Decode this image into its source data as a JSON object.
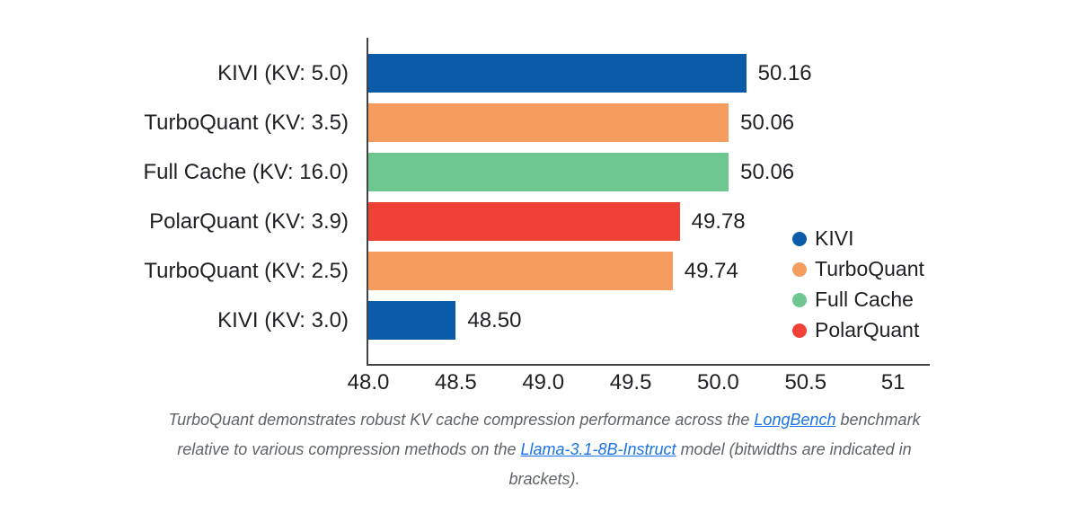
{
  "chart_data": {
    "type": "bar",
    "orientation": "horizontal",
    "title": "",
    "xlabel": "",
    "ylabel": "",
    "xlim": [
      48.0,
      51.22
    ],
    "grid": false,
    "categories": [
      "KIVI (KV: 5.0)",
      "TurboQuant (KV: 3.5)",
      "Full Cache (KV: 16.0)",
      "PolarQuant (KV: 3.9)",
      "TurboQuant (KV: 2.5)",
      "KIVI (KV: 3.0)"
    ],
    "values": [
      50.16,
      50.06,
      50.06,
      49.78,
      49.74,
      48.5
    ],
    "rows": [
      {
        "label": "KIVI (KV: 5.0)",
        "series": "KIVI",
        "value": 50.16,
        "value_label": "50.16",
        "color": "#0a5ca8"
      },
      {
        "label": "TurboQuant (KV: 3.5)",
        "series": "TurboQuant",
        "value": 50.06,
        "value_label": "50.06",
        "color": "#f49d5f"
      },
      {
        "label": "Full Cache (KV: 16.0)",
        "series": "Full Cache",
        "value": 50.06,
        "value_label": "50.06",
        "color": "#6ec690"
      },
      {
        "label": "PolarQuant (KV: 3.9)",
        "series": "PolarQuant",
        "value": 49.78,
        "value_label": "49.78",
        "color": "#ee4237"
      },
      {
        "label": "TurboQuant (KV: 2.5)",
        "series": "TurboQuant",
        "value": 49.74,
        "value_label": "49.74",
        "color": "#f49d5f"
      },
      {
        "label": "KIVI (KV: 3.0)",
        "series": "KIVI",
        "value": 48.5,
        "value_label": "48.50",
        "color": "#0a5ca8"
      }
    ],
    "x_ticks": [
      {
        "label": "48.0",
        "value": 48.0
      },
      {
        "label": "48.5",
        "value": 48.5
      },
      {
        "label": "49.0",
        "value": 49.0
      },
      {
        "label": "49.5",
        "value": 49.5
      },
      {
        "label": "50.0",
        "value": 50.0
      },
      {
        "label": "50.5",
        "value": 50.5
      },
      {
        "label": "51",
        "value": 51.0
      }
    ],
    "legend": {
      "position": "inside-right",
      "items": [
        {
          "label": "KIVI",
          "color": "#0a5ca8"
        },
        {
          "label": "TurboQuant",
          "color": "#f49d5f"
        },
        {
          "label": "Full Cache",
          "color": "#6ec690"
        },
        {
          "label": "PolarQuant",
          "color": "#ee4237"
        }
      ]
    }
  },
  "colors": {
    "kivi_blue": "#0a5ca8",
    "turboquant_orange": "#f49d5f",
    "full_cache_green": "#6ec690",
    "polarquant_red": "#ee4237",
    "axis": "#414347",
    "text": "#1f2023",
    "caption_text": "#5f6368",
    "link": "#1a73e8",
    "background": "#ffffff"
  },
  "caption": {
    "part1": "TurboQuant demonstrates robust KV cache compression performance across the ",
    "link1": "LongBench",
    "part2": " benchmark",
    "part3": "relative to various compression methods on the ",
    "link2": "Llama-3.1-8B-Instruct",
    "part4": " model (bitwidths are indicated in",
    "part5": "brackets)."
  }
}
